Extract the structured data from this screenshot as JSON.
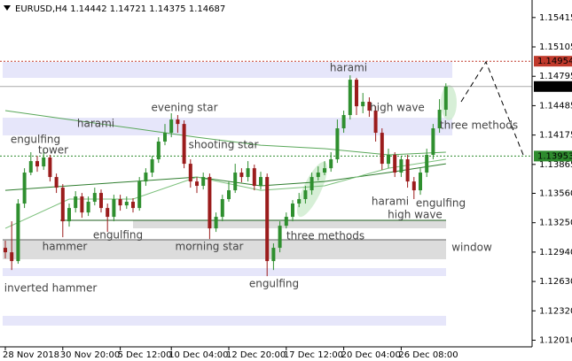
{
  "chart_data": {
    "type": "candlestick",
    "symbol": "EURUSD,H4",
    "up_color": "#2f8f2f",
    "down_color": "#9b1c1c",
    "ylim": [
      1.1194,
      1.156
    ],
    "yticks": [
      1.15415,
      1.15105,
      1.14795,
      1.14485,
      1.14175,
      1.13865,
      {
        "value": 1.1356,
        "label": "1.13560"
      },
      {
        "value": 1.1325,
        "label": "1.13250"
      },
      {
        "value": 1.1294,
        "label": "1.12940"
      },
      {
        "value": 1.1263,
        "label": "1.12630"
      },
      {
        "value": 1.1232,
        "label": "1.12320"
      },
      {
        "value": 1.1201,
        "label": "1.12010"
      }
    ],
    "categories": [
      "28 Nov 2018",
      null,
      null,
      null,
      null,
      null,
      null,
      null,
      null,
      "30 Nov 20:00",
      null,
      null,
      null,
      null,
      null,
      null,
      null,
      null,
      "5 Dec 12:00",
      null,
      null,
      null,
      null,
      null,
      null,
      null,
      "10 Dec 04:00",
      null,
      null,
      null,
      null,
      null,
      null,
      null,
      null,
      "12 Dec 20:00",
      null,
      null,
      null,
      null,
      null,
      null,
      null,
      null,
      "17 Dec 12:00",
      null,
      null,
      null,
      null,
      null,
      null,
      null,
      null,
      "20 Dec 04:00",
      null,
      null,
      null,
      null,
      null,
      null,
      null,
      null,
      "26 Dec 08:00",
      null,
      null,
      null,
      null,
      null,
      null,
      null
    ],
    "open": [
      1.12985,
      1.12938,
      1.12845,
      1.13452,
      1.13779,
      1.139,
      1.13844,
      1.13938,
      1.13732,
      1.1362,
      1.13265,
      1.13405,
      1.13527,
      1.13358,
      1.13471,
      1.13564,
      1.13405,
      1.13312,
      1.13499,
      1.13433,
      1.13471,
      1.13405,
      1.13685,
      1.13779,
      1.13919,
      1.14106,
      1.14199,
      1.14339,
      1.14292,
      1.13872,
      1.13685,
      1.13639,
      1.13732,
      1.1319,
      1.13312,
      1.13499,
      1.13592,
      1.13779,
      1.13732,
      1.13825,
      1.13639,
      1.13732,
      1.12845,
      1.12985,
      1.13218,
      1.13312,
      1.13452,
      1.13499,
      1.13592,
      1.13732,
      1.13779,
      1.13825,
      1.13919,
      1.14246,
      1.14386,
      1.14759,
      1.14479,
      1.14526,
      1.14433,
      1.14199,
      1.13872,
      1.13966,
      1.13779,
      1.13919,
      1.13685,
      1.13592,
      1.13779,
      1.13966,
      1.14246,
      1.14442
    ],
    "high": [
      1.1306,
      1.13265,
      1.13499,
      1.13825,
      1.13994,
      1.13956,
      1.14031,
      1.13966,
      1.13769,
      1.13657,
      1.13452,
      1.13583,
      1.13564,
      1.13527,
      1.1362,
      1.13601,
      1.13452,
      1.13545,
      1.13545,
      1.13527,
      1.13508,
      1.13732,
      1.13825,
      1.13956,
      1.14152,
      1.14292,
      1.14405,
      1.14386,
      1.1433,
      1.13919,
      1.13732,
      1.13779,
      1.13769,
      1.13358,
      1.13545,
      1.13685,
      1.13872,
      1.13825,
      1.139,
      1.13863,
      1.13788,
      1.13769,
      1.13032,
      1.13265,
      1.13358,
      1.13489,
      1.13564,
      1.13639,
      1.13779,
      1.13844,
      1.139,
      1.13994,
      1.14339,
      1.14433,
      1.14806,
      1.14778,
      1.14619,
      1.14573,
      1.14479,
      1.14246,
      1.14031,
      1.13994,
      1.13956,
      1.13966,
      1.13732,
      1.13825,
      1.14031,
      1.14292,
      1.14554,
      1.14721
    ],
    "low": [
      1.12873,
      1.12751,
      1.12817,
      1.13405,
      1.13751,
      1.13788,
      1.13807,
      1.13685,
      1.13564,
      1.13097,
      1.13209,
      1.13358,
      1.13302,
      1.13321,
      1.13433,
      1.13358,
      1.13153,
      1.13265,
      1.13377,
      1.13396,
      1.13358,
      1.13377,
      1.13639,
      1.13732,
      1.13881,
      1.14068,
      1.14152,
      1.14199,
      1.13825,
      1.1362,
      1.13564,
      1.13601,
      1.13078,
      1.13153,
      1.13265,
      1.13471,
      1.13564,
      1.13676,
      1.13685,
      1.13592,
      1.13601,
      1.12686,
      1.12751,
      1.12938,
      1.1319,
      1.13265,
      1.13414,
      1.13452,
      1.13545,
      1.13695,
      1.13751,
      1.13788,
      1.13881,
      1.14199,
      1.14339,
      1.14386,
      1.14405,
      1.14367,
      1.14106,
      1.13807,
      1.13825,
      1.13732,
      1.13732,
      1.1362,
      1.13499,
      1.13545,
      1.13732,
      1.13919,
      1.14199,
      1.14375
    ],
    "close": [
      1.12938,
      1.12845,
      1.13452,
      1.13779,
      1.139,
      1.13844,
      1.13938,
      1.13732,
      1.1362,
      1.13265,
      1.13405,
      1.13527,
      1.13358,
      1.13471,
      1.13564,
      1.13405,
      1.13312,
      1.13499,
      1.13433,
      1.13471,
      1.13405,
      1.13685,
      1.13779,
      1.13919,
      1.14106,
      1.14199,
      1.14339,
      1.14292,
      1.13872,
      1.13685,
      1.13639,
      1.13732,
      1.1319,
      1.13312,
      1.13499,
      1.13592,
      1.13779,
      1.13732,
      1.13825,
      1.13639,
      1.13732,
      1.12845,
      1.12985,
      1.13218,
      1.13312,
      1.13452,
      1.13499,
      1.13592,
      1.13732,
      1.13779,
      1.13825,
      1.13919,
      1.14246,
      1.14386,
      1.14759,
      1.14479,
      1.14526,
      1.14433,
      1.14199,
      1.13872,
      1.13966,
      1.13779,
      1.13919,
      1.13685,
      1.13592,
      1.13779,
      1.13966,
      1.14246,
      1.14442,
      1.14687
    ],
    "overlays": [
      {
        "color": "#5aa85a",
        "x": [
          0,
          10,
          20,
          30,
          40,
          50,
          60,
          69
        ],
        "values": [
          1.14433,
          1.14339,
          1.14246,
          1.14152,
          1.14068,
          1.14031,
          1.13966,
          1.13994
        ]
      },
      {
        "color": "#2e7d2e",
        "x": [
          0,
          10,
          20,
          30,
          40,
          50,
          60,
          69
        ],
        "values": [
          1.13592,
          1.13639,
          1.13685,
          1.13732,
          1.13639,
          1.13685,
          1.13779,
          1.13872
        ]
      },
      {
        "color": "#7cc07c",
        "x": [
          0,
          10,
          20,
          30,
          40,
          50,
          60,
          69
        ],
        "values": [
          1.1319,
          1.13499,
          1.13499,
          1.13732,
          1.13592,
          1.13639,
          1.13825,
          1.13919
        ]
      }
    ],
    "levels": [
      {
        "value": 1.14954,
        "color": "#c0392b",
        "style": "dotted"
      },
      {
        "value": 1.14687,
        "color": "#000000",
        "style": "solid"
      },
      {
        "value": 1.13953,
        "color": "#2e8b2e",
        "style": "dotted"
      }
    ],
    "annotations": [
      "harami",
      "high wave",
      "three methods",
      "evening star",
      "harami",
      "engulfing",
      "tower",
      "shooting star",
      "harami",
      "engulfing",
      "high wave",
      "three methods",
      "window",
      "hammer",
      "engulfing",
      "morning star",
      "inverted hammer",
      "engulfing"
    ]
  }
}
